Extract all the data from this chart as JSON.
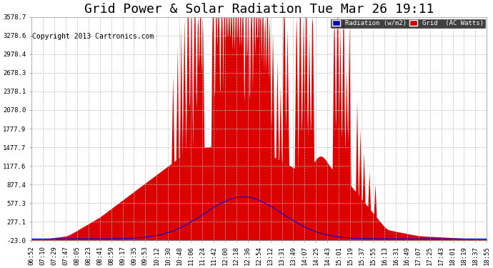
{
  "title": "Grid Power & Solar Radiation Tue Mar 26 19:11",
  "copyright": "Copyright 2013 Cartronics.com",
  "legend_labels": [
    "Radiation (w/m2)",
    "Grid  (AC Watts)"
  ],
  "legend_colors": [
    "#0000bb",
    "#cc0000"
  ],
  "y_ticks": [
    -23.0,
    277.1,
    577.3,
    877.4,
    1177.6,
    1477.7,
    1777.9,
    2078.0,
    2378.1,
    2678.3,
    2978.4,
    3278.6,
    3578.7
  ],
  "x_tick_labels": [
    "06:52",
    "07:10",
    "07:29",
    "07:47",
    "08:05",
    "08:23",
    "08:41",
    "08:59",
    "09:17",
    "09:35",
    "09:53",
    "10:12",
    "10:30",
    "10:48",
    "11:06",
    "11:24",
    "11:42",
    "12:00",
    "12:18",
    "12:36",
    "12:54",
    "13:12",
    "13:31",
    "13:49",
    "14:07",
    "14:25",
    "14:43",
    "15:01",
    "15:19",
    "15:37",
    "15:55",
    "16:13",
    "16:31",
    "16:49",
    "17:07",
    "17:25",
    "17:43",
    "18:01",
    "18:19",
    "18:37",
    "18:55"
  ],
  "background_color": "#ffffff",
  "plot_bg_color": "#ffffff",
  "grid_color": "#bbbbbb",
  "title_fontsize": 13,
  "copyright_fontsize": 7,
  "tick_fontsize": 6.5,
  "y_min": -23.0,
  "y_max": 3578.7
}
